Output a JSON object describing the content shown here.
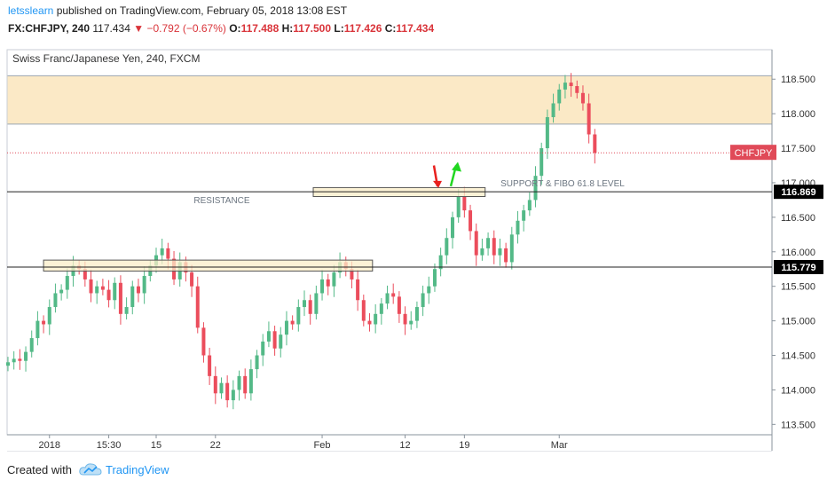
{
  "header": {
    "user": "letsslearn",
    "published_text": "published on TradingView.com, February 05, 2018 13:08 EST",
    "symbol": "FX:CHFJPY, 240",
    "last": "117.434",
    "change": "−0.792 (−0.67%)",
    "o_label": "O:",
    "o_value": "117.488",
    "h_label": "H:",
    "h_value": "117.500",
    "l_label": "L:",
    "l_value": "117.426",
    "c_label": "C:",
    "c_value": "117.434"
  },
  "footer": {
    "created_with": "Created with",
    "brand": "TradingView"
  },
  "colors": {
    "up": "#53b987",
    "down": "#eb4d5c",
    "zone": "#fbe9c6",
    "price_tag": "#e04a58",
    "level_tag": "#000000"
  },
  "chart_data": {
    "type": "candlestick",
    "title": "Swiss Franc/Japanese Yen, 240, FXCM",
    "y_ticks": [
      "113.500",
      "114.000",
      "114.500",
      "115.000",
      "115.500",
      "116.000",
      "116.500",
      "117.000",
      "117.500",
      "118.000",
      "118.500"
    ],
    "ylim": [
      113.35,
      118.85
    ],
    "x_ticks": [
      {
        "label": "2018",
        "i": 7
      },
      {
        "label": "15:30",
        "i": 17
      },
      {
        "label": "15",
        "i": 25
      },
      {
        "label": "22",
        "i": 35
      },
      {
        "label": "Feb",
        "i": 53
      },
      {
        "label": "12",
        "i": 67
      },
      {
        "label": "19",
        "i": 77
      },
      {
        "label": "Mar",
        "i": 93
      }
    ],
    "closes": [
      114.4,
      114.45,
      114.42,
      114.55,
      114.75,
      115.0,
      114.95,
      115.2,
      115.4,
      115.45,
      115.65,
      115.8,
      115.75,
      115.6,
      115.4,
      115.5,
      115.45,
      115.3,
      115.55,
      115.1,
      115.2,
      115.5,
      115.4,
      115.65,
      115.8,
      115.95,
      116.05,
      115.9,
      115.6,
      115.85,
      115.7,
      115.5,
      114.9,
      114.5,
      114.2,
      113.95,
      114.1,
      113.85,
      114.0,
      114.2,
      113.95,
      114.3,
      114.5,
      114.7,
      114.85,
      114.6,
      114.8,
      115.0,
      114.95,
      115.2,
      115.3,
      115.1,
      115.4,
      115.6,
      115.5,
      115.7,
      115.85,
      115.75,
      115.6,
      115.3,
      115.0,
      114.95,
      115.1,
      115.25,
      115.4,
      115.35,
      115.1,
      114.95,
      115.0,
      115.2,
      115.4,
      115.5,
      115.75,
      115.95,
      116.2,
      116.5,
      116.8,
      116.6,
      116.3,
      115.95,
      116.05,
      116.2,
      115.95,
      116.05,
      115.85,
      116.25,
      116.45,
      116.6,
      116.75,
      117.1,
      117.5,
      117.95,
      118.15,
      118.35,
      118.45,
      118.4,
      118.3,
      118.15,
      117.7,
      117.434
    ],
    "annotations": [
      "RESISTANCE",
      "SUPPORT & FIBO 61.8 LEVEL"
    ],
    "levels": [
      {
        "value": 116.869,
        "label": "116.869"
      },
      {
        "value": 115.779,
        "label": "115.779"
      }
    ],
    "resistance_zone": [
      117.85,
      118.55
    ],
    "current_price": {
      "value": 117.434,
      "label": "CHFJPY"
    }
  }
}
